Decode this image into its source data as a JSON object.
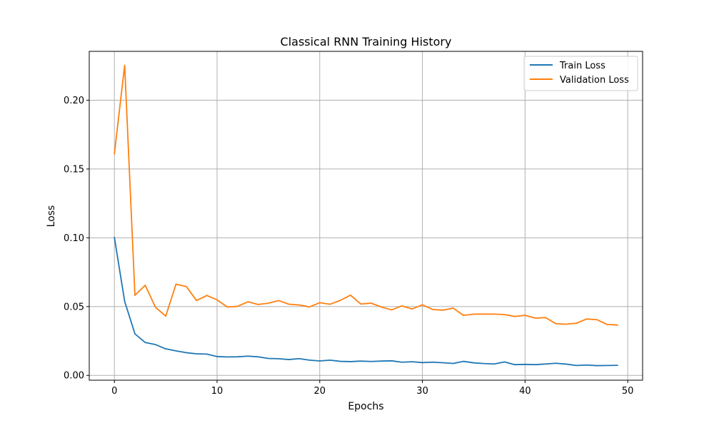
{
  "chart_data": {
    "type": "line",
    "title": "Classical RNN Training History",
    "xlabel": "Epochs",
    "ylabel": "Loss",
    "xlim": [
      -2.45,
      51.45
    ],
    "ylim": [
      -0.0035,
      0.2355
    ],
    "x_ticks": [
      0,
      10,
      20,
      30,
      40,
      50
    ],
    "x_tick_labels": [
      "0",
      "10",
      "20",
      "30",
      "40",
      "50"
    ],
    "y_ticks": [
      0.0,
      0.05,
      0.1,
      0.15,
      0.2
    ],
    "y_tick_labels": [
      "0.00",
      "0.05",
      "0.10",
      "0.15",
      "0.20"
    ],
    "grid": true,
    "legend_position": "top-right",
    "x": [
      0,
      1,
      2,
      3,
      4,
      5,
      6,
      7,
      8,
      9,
      10,
      11,
      12,
      13,
      14,
      15,
      16,
      17,
      18,
      19,
      20,
      21,
      22,
      23,
      24,
      25,
      26,
      27,
      28,
      29,
      30,
      31,
      32,
      33,
      34,
      35,
      36,
      37,
      38,
      39,
      40,
      41,
      42,
      43,
      44,
      45,
      46,
      47,
      48,
      49
    ],
    "series": [
      {
        "name": "Train Loss",
        "color": "#1f77b4",
        "values": [
          0.1002,
          0.0538,
          0.0302,
          0.0239,
          0.0224,
          0.0193,
          0.0178,
          0.0165,
          0.0157,
          0.0155,
          0.0137,
          0.0134,
          0.0135,
          0.014,
          0.0135,
          0.0123,
          0.0121,
          0.0115,
          0.0122,
          0.0111,
          0.0105,
          0.0111,
          0.0102,
          0.01,
          0.0104,
          0.0101,
          0.0104,
          0.0106,
          0.0096,
          0.0099,
          0.0093,
          0.0096,
          0.0092,
          0.0087,
          0.0102,
          0.0091,
          0.0086,
          0.0083,
          0.0098,
          0.0078,
          0.008,
          0.0078,
          0.0083,
          0.0088,
          0.0082,
          0.0072,
          0.0075,
          0.0071,
          0.0072,
          0.0073
        ]
      },
      {
        "name": "Validation Loss",
        "color": "#ff7f0e",
        "values": [
          0.1612,
          0.2254,
          0.0582,
          0.0655,
          0.0495,
          0.0431,
          0.0663,
          0.0646,
          0.0544,
          0.0581,
          0.0549,
          0.0497,
          0.0502,
          0.0535,
          0.0515,
          0.0525,
          0.0544,
          0.0517,
          0.0512,
          0.0498,
          0.0528,
          0.0517,
          0.0545,
          0.0583,
          0.0519,
          0.0525,
          0.0497,
          0.0476,
          0.0505,
          0.0483,
          0.0513,
          0.0479,
          0.0474,
          0.0489,
          0.0436,
          0.0445,
          0.0446,
          0.0445,
          0.0442,
          0.0428,
          0.0437,
          0.0416,
          0.042,
          0.0376,
          0.0372,
          0.0379,
          0.041,
          0.0405,
          0.037,
          0.0366
        ]
      }
    ]
  }
}
